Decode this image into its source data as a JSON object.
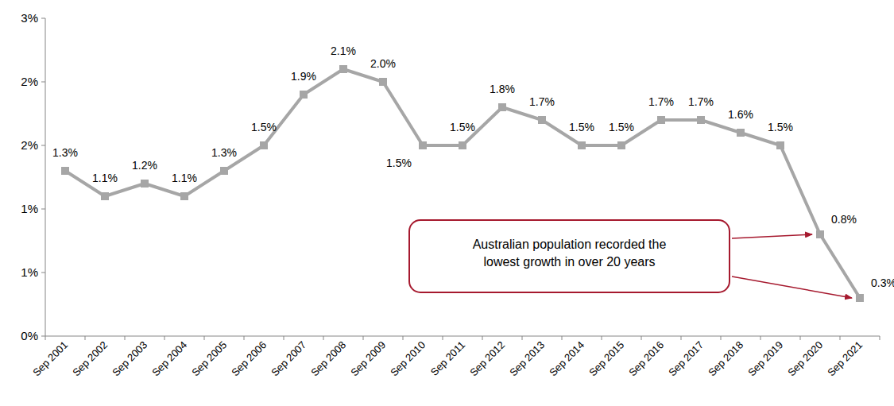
{
  "chart_data": {
    "type": "line",
    "categories": [
      "Sep 2001",
      "Sep 2002",
      "Sep 2003",
      "Sep 2004",
      "Sep 2005",
      "Sep 2006",
      "Sep 2007",
      "Sep 2008",
      "Sep 2009",
      "Sep 2010",
      "Sep 2011",
      "Sep 2012",
      "Sep 2013",
      "Sep 2014",
      "Sep 2015",
      "Sep 2016",
      "Sep 2017",
      "Sep 2018",
      "Sep 2019",
      "Sep 2020",
      "Sep 2021"
    ],
    "values": [
      1.3,
      1.1,
      1.2,
      1.1,
      1.3,
      1.5,
      1.9,
      2.1,
      2.0,
      1.5,
      1.5,
      1.8,
      1.7,
      1.5,
      1.5,
      1.7,
      1.7,
      1.6,
      1.5,
      0.8,
      0.3
    ],
    "value_labels": [
      "1.3%",
      "1.1%",
      "1.2%",
      "1.1%",
      "1.3%",
      "1.5%",
      "1.9%",
      "2.1%",
      "2.0%",
      "1.5%",
      "1.5%",
      "1.8%",
      "1.7%",
      "1.5%",
      "1.5%",
      "1.7%",
      "1.7%",
      "1.6%",
      "1.5%",
      "0.8%",
      "0.3%"
    ],
    "color": "#a6a6a6",
    "marker": "square",
    "line_style": "solid",
    "data_labels": true,
    "grid": false,
    "ylim": [
      0,
      2.5
    ],
    "yticks": [
      {
        "value": 0,
        "label": "0%"
      },
      {
        "value": 0.5,
        "label": "1%"
      },
      {
        "value": 1,
        "label": "1%"
      },
      {
        "value": 1.5,
        "label": "2%"
      },
      {
        "value": 2,
        "label": "2%"
      },
      {
        "value": 2.5,
        "label": "3%"
      }
    ],
    "annotation": [
      "Australian population recorded the",
      "lowest growth in over 20 years"
    ]
  }
}
